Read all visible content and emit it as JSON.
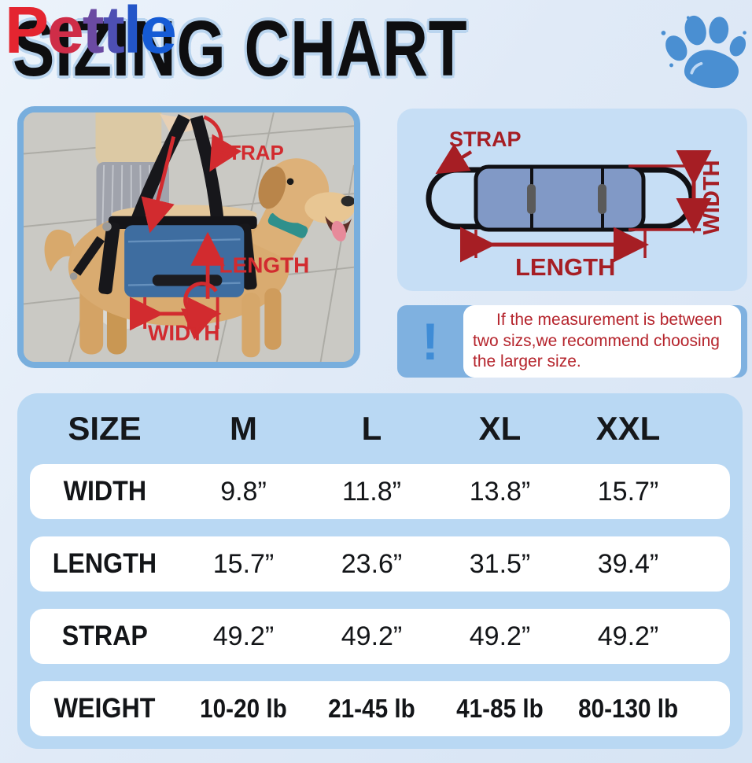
{
  "brand": {
    "name": "Pettle",
    "letter_colors": [
      "#e42530",
      "#cf2d48",
      "#6b4aa2",
      "#4d4fb3",
      "#2355c8",
      "#155bd5"
    ]
  },
  "title": "SIZING CHART",
  "paw_icon": "paw-print",
  "photo": {
    "labels": {
      "strap": "STRAP",
      "length": "LENGTH",
      "width": "WIDTH"
    }
  },
  "diagram": {
    "labels": {
      "strap": "STRAP",
      "length": "LENGTH",
      "width": "WIDTH"
    }
  },
  "note": {
    "icon": "!",
    "lines": [
      "If the measurement is between",
      "two sizs,we recommend choosing",
      "the larger size."
    ]
  },
  "table": {
    "header": [
      "SIZE",
      "M",
      "L",
      "XL",
      "XXL"
    ],
    "rows": [
      {
        "label": "WIDTH",
        "values": [
          "9.8”",
          "11.8”",
          "13.8”",
          "15.7”"
        ]
      },
      {
        "label": "LENGTH",
        "values": [
          "15.7”",
          "23.6”",
          "31.5”",
          "39.4”"
        ]
      },
      {
        "label": "STRAP",
        "values": [
          "49.2”",
          "49.2”",
          "49.2”",
          "49.2”"
        ]
      },
      {
        "label": "WEIGHT",
        "values": [
          "10-20 lb",
          "21-45 lb",
          "41-85 lb",
          "80-130 lb"
        ]
      }
    ]
  },
  "colors": {
    "page_bg": "#e0eaf7",
    "table_panel_blue": "#b9d8f3",
    "diagram_panel_blue": "#c6def5",
    "note_bg_blue": "#7fb1e0",
    "note_icon_blue": "#3f8cd6",
    "note_text_red": "#b5242c",
    "annotation_red_photo": "#d22b2f",
    "annotation_red_diagram": "#a61e24",
    "paw_blue": "#4a8fd2",
    "photo_border_blue": "#78aedd",
    "harness_blue": "#3e6da0",
    "diagram_body_blue": "#8199c6",
    "row_white": "#ffffff",
    "text_black": "#131518"
  }
}
